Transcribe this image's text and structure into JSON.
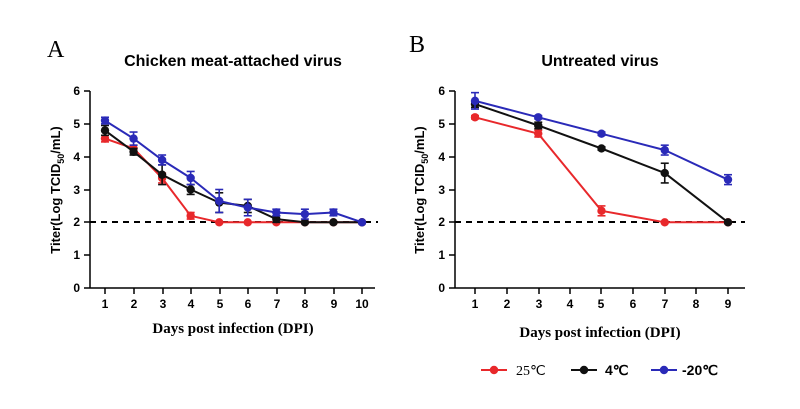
{
  "chart_data": [
    {
      "panel_letter": "A",
      "type": "line",
      "title": "Chicken meat-attached virus",
      "xlabel": "Days post infection (DPI)",
      "ylabel_main": "Titer(Log TCID",
      "ylabel_sub": "50",
      "ylabel_tail": "/mL)",
      "xlim": [
        0.5,
        10.5
      ],
      "ylim": [
        0,
        6
      ],
      "x_ticks": [
        1,
        2,
        3,
        4,
        5,
        6,
        7,
        8,
        9,
        10
      ],
      "x_tick_labels": [
        "1",
        "2",
        "3",
        "4",
        "5",
        "6",
        "7",
        "8",
        "9",
        "10"
      ],
      "y_ticks": [
        0,
        1,
        2,
        3,
        4,
        5,
        6
      ],
      "y_tick_labels": [
        "0",
        "1",
        "2",
        "3",
        "4",
        "5",
        "6"
      ],
      "threshold": 2,
      "series": [
        {
          "name": "25℃",
          "color": "#e8282b",
          "x": [
            1,
            2,
            3,
            4,
            5,
            6,
            7,
            8,
            9,
            10
          ],
          "values": [
            4.55,
            4.25,
            3.35,
            2.2,
            2.0,
            2.0,
            2.0,
            2.0,
            2.0,
            2.0
          ],
          "errors": [
            0.1,
            0.1,
            0.15,
            0.1,
            0.0,
            0.0,
            0.0,
            0.0,
            0.0,
            0.0
          ]
        },
        {
          "name": "4℃",
          "color": "#111111",
          "x": [
            1,
            2,
            3,
            4,
            5,
            6,
            7,
            8,
            9,
            10
          ],
          "values": [
            4.8,
            4.15,
            3.45,
            3.0,
            2.6,
            2.5,
            2.1,
            2.0,
            2.0,
            2.0
          ],
          "errors": [
            0.15,
            0.1,
            0.3,
            0.15,
            0.3,
            0.2,
            0.1,
            0.0,
            0.0,
            0.0
          ]
        },
        {
          "name": "-20℃",
          "color": "#2a2ab8",
          "x": [
            1,
            2,
            3,
            4,
            5,
            6,
            7,
            8,
            9,
            10
          ],
          "values": [
            5.1,
            4.55,
            3.9,
            3.35,
            2.65,
            2.45,
            2.3,
            2.25,
            2.3,
            2.0
          ],
          "errors": [
            0.1,
            0.2,
            0.15,
            0.2,
            0.35,
            0.25,
            0.1,
            0.15,
            0.1,
            0.0
          ]
        }
      ]
    },
    {
      "panel_letter": "B",
      "type": "line",
      "title": "Untreated virus",
      "xlabel": "Days post infection (DPI)",
      "ylabel_main": "Titer(Log TCID",
      "ylabel_sub": "50",
      "ylabel_tail": "/mL)",
      "xlim": [
        0.7,
        9.8
      ],
      "ylim": [
        0,
        6
      ],
      "x_ticks": [
        1,
        2,
        3,
        4,
        5,
        6,
        7,
        8,
        9
      ],
      "x_tick_labels": [
        "1",
        "2",
        "3",
        "4",
        "5",
        "6",
        "7",
        "8",
        "9"
      ],
      "y_ticks": [
        0,
        1,
        2,
        3,
        4,
        5,
        6
      ],
      "y_tick_labels": [
        "0",
        "1",
        "2",
        "3",
        "4",
        "5",
        "6"
      ],
      "threshold": 2,
      "series": [
        {
          "name": "25℃",
          "color": "#e8282b",
          "x": [
            1,
            3,
            5,
            7,
            9
          ],
          "values": [
            5.2,
            4.7,
            2.35,
            2.0,
            2.0
          ],
          "errors": [
            0.05,
            0.1,
            0.15,
            0.0,
            0.0
          ]
        },
        {
          "name": "4℃",
          "color": "#111111",
          "x": [
            1,
            3,
            5,
            7,
            9
          ],
          "values": [
            5.6,
            4.95,
            4.25,
            3.5,
            2.0
          ],
          "errors": [
            0.1,
            0.1,
            0.05,
            0.3,
            0.0
          ]
        },
        {
          "name": "-20℃",
          "color": "#2a2ab8",
          "x": [
            1,
            3,
            5,
            7,
            9
          ],
          "values": [
            5.7,
            5.2,
            4.7,
            4.2,
            3.3
          ],
          "errors": [
            0.25,
            0.05,
            0.05,
            0.15,
            0.15
          ]
        }
      ]
    }
  ],
  "legend": {
    "items": [
      {
        "label": "25℃",
        "color": "#e8282b"
      },
      {
        "label": "4℃",
        "color": "#111111"
      },
      {
        "label": "-20℃",
        "color": "#2a2ab8"
      }
    ]
  }
}
